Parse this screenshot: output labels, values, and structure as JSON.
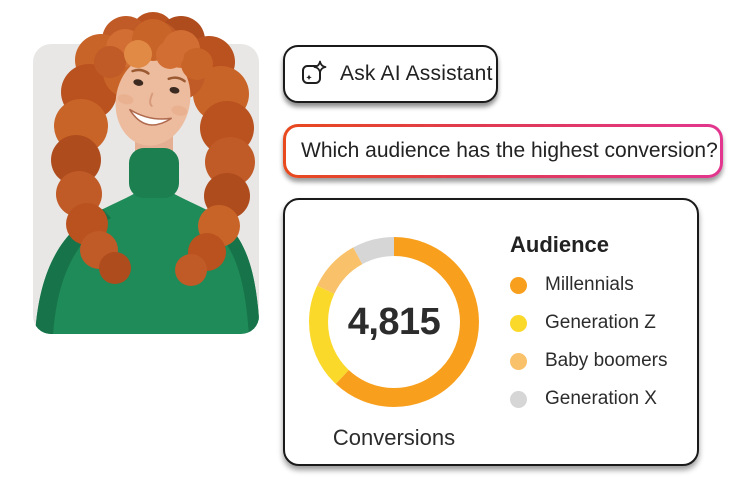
{
  "assistant": {
    "button_label": "Ask AI Assistant",
    "button_icon": "ai-sparkle-icon",
    "query": "Which audience has the highest conversion?",
    "input_border_gradient": [
      "#E8491D",
      "#E2368F"
    ]
  },
  "photo": {
    "description": "Smiling woman with curly red hair in a green turtleneck",
    "background_color": "#E8E7E5",
    "sweater_color": "#1F8B58",
    "hair_color": "#C05A26"
  },
  "chart_data": {
    "type": "pie",
    "subtype": "donut",
    "title": "Audience",
    "center_value": "4,815",
    "center_value_number": 4815,
    "label": "Conversions",
    "legend_position": "right",
    "start_angle_deg": 0,
    "direction": "clockwise",
    "segments": [
      {
        "name": "Millennials",
        "pct": 62,
        "color": "#F8A01D"
      },
      {
        "name": "Generation Z",
        "pct": 20,
        "color": "#FBD92B"
      },
      {
        "name": "Baby boomers",
        "pct": 10,
        "color": "#F9C169"
      },
      {
        "name": "Generation X",
        "pct": 8,
        "color": "#D6D6D6"
      }
    ]
  }
}
